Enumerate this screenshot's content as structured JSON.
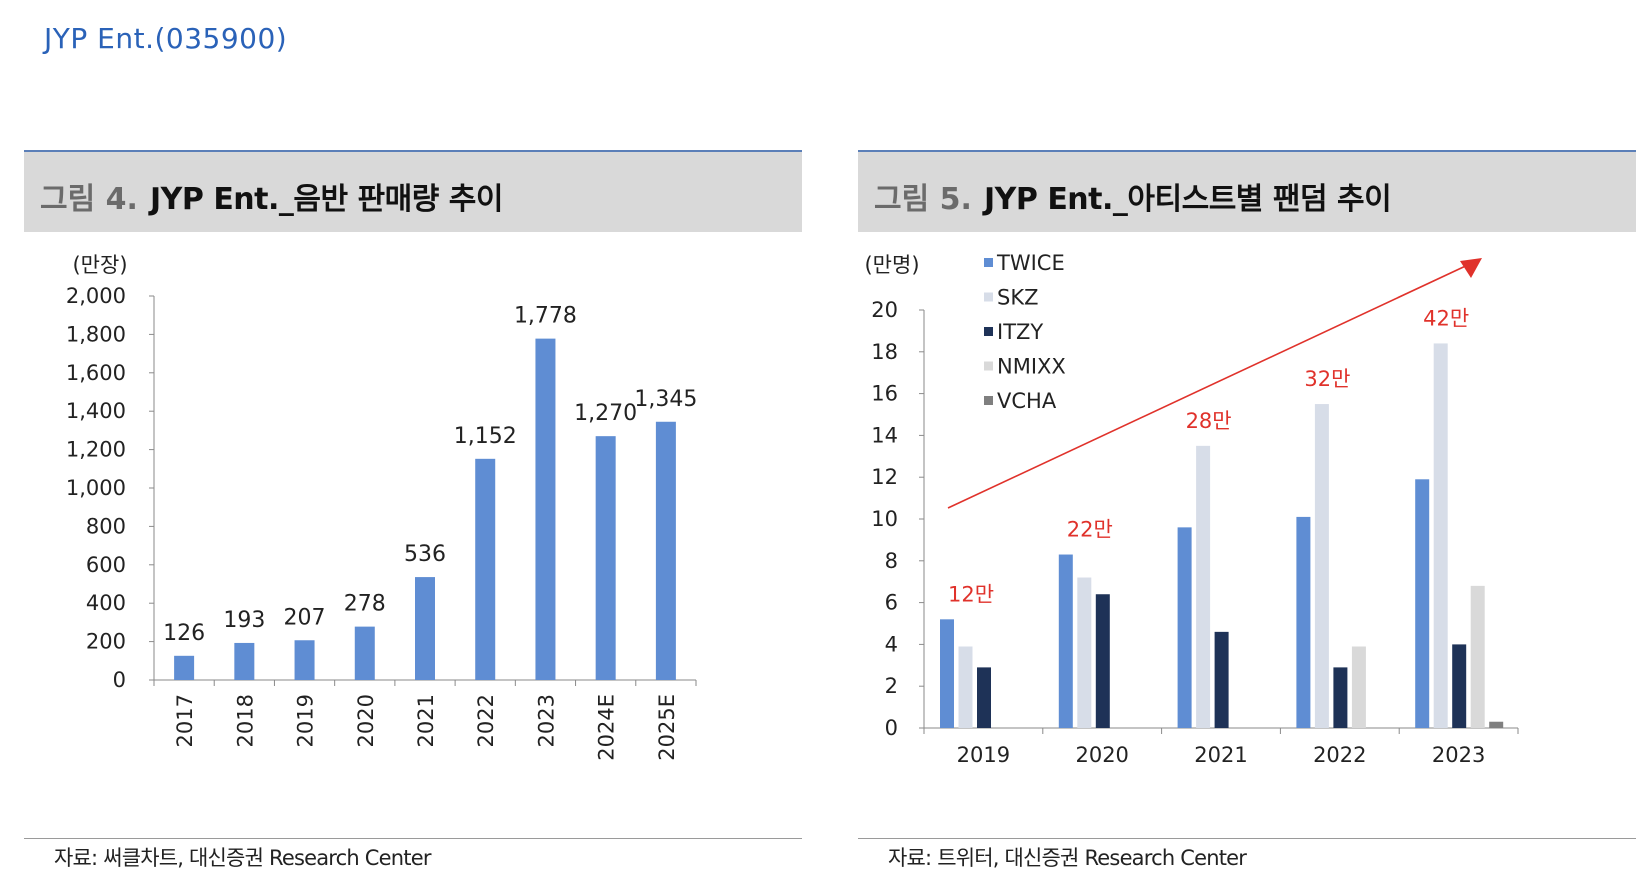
{
  "header": {
    "company": "JYP Ent.(035900)"
  },
  "figures": [
    {
      "number": "그림 4.",
      "title": "JYP Ent._음반 판매량 추이",
      "source": "자료: 써클차트, 대신증권 Research Center"
    },
    {
      "number": "그림 5.",
      "title": "JYP Ent._아티스트별 팬덤 추이",
      "source": "자료: 트위터, 대신증권 Research Center"
    }
  ],
  "chart_data": [
    {
      "type": "bar",
      "ylabel": "(만장)",
      "categories": [
        "2017",
        "2018",
        "2019",
        "2020",
        "2021",
        "2022",
        "2023",
        "2024E",
        "2025E"
      ],
      "values": [
        126,
        193,
        207,
        278,
        536,
        1152,
        1778,
        1270,
        1345
      ],
      "data_labels": [
        "126",
        "193",
        "207",
        "278",
        "536",
        "1,152",
        "1,778",
        "1,270",
        "1,345"
      ],
      "ylim": [
        0,
        2000
      ],
      "yticks": [
        0,
        200,
        400,
        600,
        800,
        1000,
        1200,
        1400,
        1600,
        1800,
        2000
      ],
      "ytick_labels": [
        "0",
        "200",
        "400",
        "600",
        "800",
        "1,000",
        "1,200",
        "1,400",
        "1,600",
        "1,800",
        "2,000"
      ],
      "color": "#5f8dd3",
      "grid": false
    },
    {
      "type": "bar",
      "ylabel": "(만명)",
      "categories": [
        "2019",
        "2020",
        "2021",
        "2022",
        "2023"
      ],
      "series": [
        {
          "name": "TWICE",
          "color": "#5f8dd3",
          "values": [
            5.2,
            8.3,
            9.6,
            10.1,
            11.9
          ]
        },
        {
          "name": "SKZ",
          "color": "#d7dde8",
          "values": [
            3.9,
            7.2,
            13.5,
            15.5,
            18.4
          ]
        },
        {
          "name": "ITZY",
          "color": "#1e3257",
          "values": [
            2.9,
            6.4,
            4.6,
            2.9,
            4.0
          ]
        },
        {
          "name": "NMIXX",
          "color": "#d9d9d9",
          "values": [
            null,
            null,
            null,
            3.9,
            6.8
          ]
        },
        {
          "name": "VCHA",
          "color": "#7f7f7f",
          "values": [
            null,
            null,
            null,
            null,
            0.3
          ]
        }
      ],
      "ylim": [
        0,
        20
      ],
      "yticks": [
        0,
        2,
        4,
        6,
        8,
        10,
        12,
        14,
        16,
        18,
        20
      ],
      "ytick_labels": [
        "0",
        "2",
        "4",
        "6",
        "8",
        "10",
        "12",
        "14",
        "16",
        "18",
        "20"
      ],
      "annotations": [
        "12만",
        "22만",
        "28만",
        "32만",
        "42만"
      ],
      "annotation_color": "#e0322b",
      "trend_arrow": true,
      "legend_position": "top-left",
      "grid": false
    }
  ]
}
